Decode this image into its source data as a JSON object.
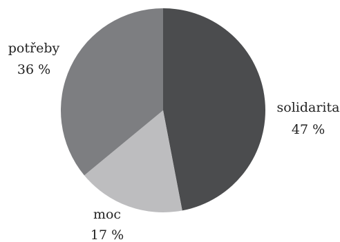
{
  "chart_data": {
    "type": "pie",
    "title": "",
    "slices": [
      {
        "name": "solidarita",
        "value": 47,
        "value_label": "47 %",
        "color": "#4b4c4e"
      },
      {
        "name": "moc",
        "value": 17,
        "value_label": "17 %",
        "color": "#bdbdbf"
      },
      {
        "name": "potřeby",
        "value": 36,
        "value_label": "36 %",
        "color": "#7d7e81"
      }
    ],
    "start_angle": "top",
    "direction": "clockwise",
    "legend": "none"
  }
}
